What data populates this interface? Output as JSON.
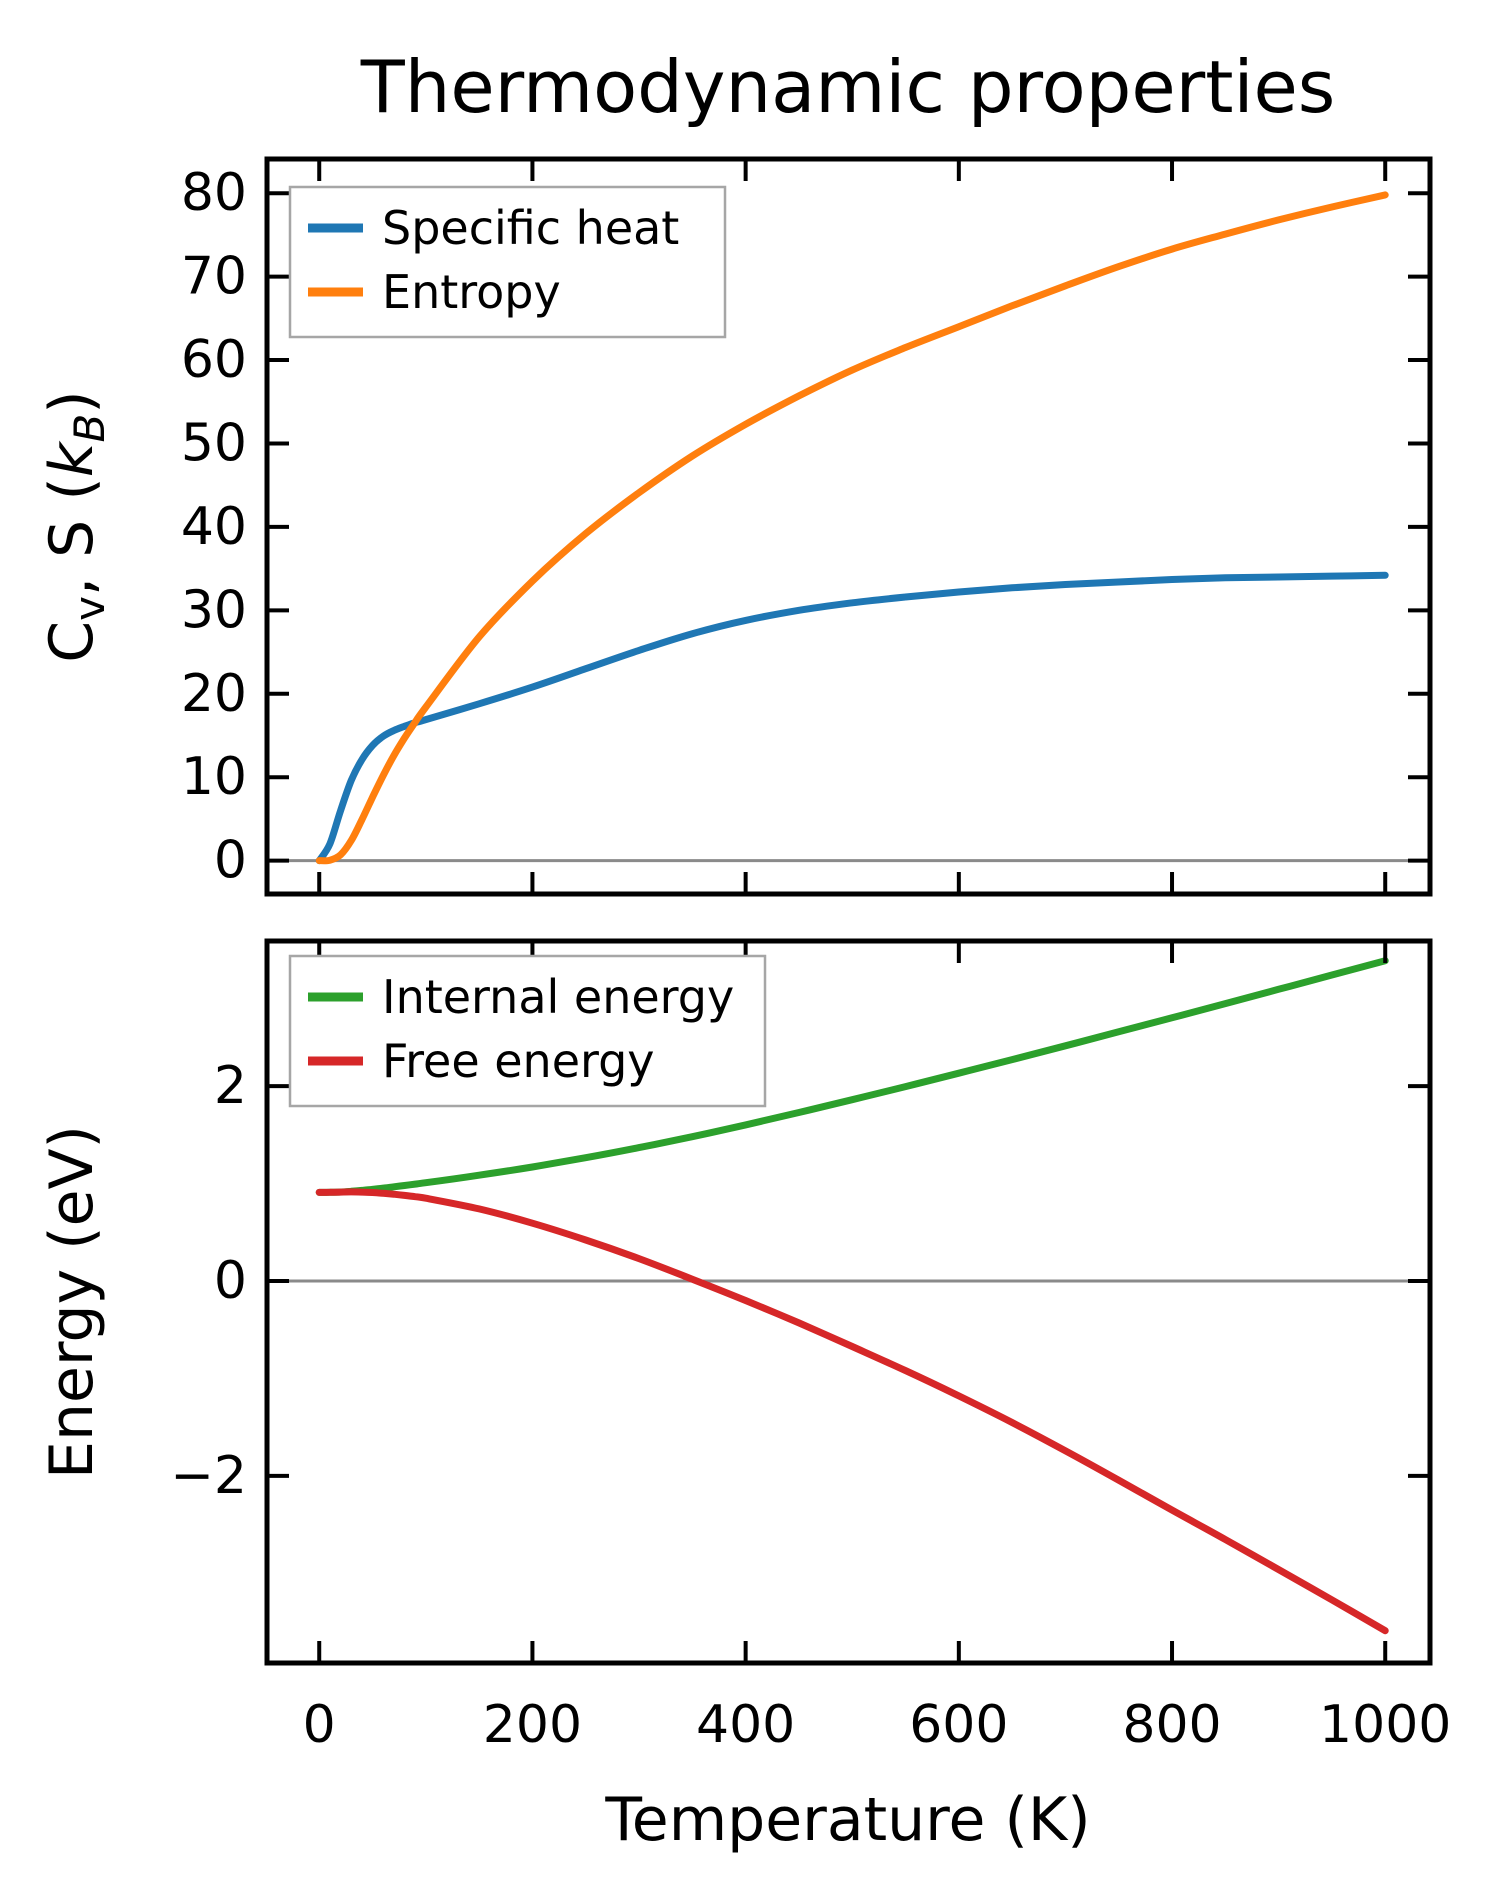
{
  "title": "Thermodynamic properties",
  "xlabel": "Temperature (K)",
  "colors": {
    "specific_heat": "#1f77b4",
    "entropy": "#ff7f0e",
    "internal_energy": "#2ca02c",
    "free_energy": "#d62728",
    "zero_line": "#8a8a8a",
    "spine": "#000000",
    "legend_border": "#a6a6a6",
    "background": "#ffffff"
  },
  "chart_data": [
    {
      "id": "top",
      "type": "line",
      "title": "",
      "ylabel_parts": [
        {
          "t": "C"
        },
        {
          "t": "v",
          "sub": true
        },
        {
          "t": ", S ("
        },
        {
          "t": "k",
          "italic": true
        },
        {
          "t": "B",
          "sub": true,
          "italic": true
        },
        {
          "t": ")"
        }
      ],
      "xlim": [
        -49,
        1042
      ],
      "ylim": [
        -4.0,
        84.1
      ],
      "xticks": [
        0,
        200,
        400,
        600,
        800,
        1000
      ],
      "yticks": [
        0,
        10,
        20,
        30,
        40,
        50,
        60,
        70,
        80
      ],
      "show_xtick_labels": false,
      "zero_line": 0,
      "grid": false,
      "legend_position": "upper left",
      "x": [
        0,
        10,
        20,
        30,
        40,
        50,
        60,
        70,
        80,
        90,
        100,
        150,
        200,
        250,
        300,
        350,
        400,
        450,
        500,
        550,
        600,
        650,
        700,
        750,
        800,
        850,
        900,
        950,
        1000
      ],
      "series": [
        {
          "name": "Specific heat",
          "slug": "specific-heat",
          "color_key": "specific_heat",
          "values": [
            0,
            2.0,
            6.0,
            9.6,
            12.1,
            13.8,
            14.9,
            15.6,
            16.1,
            16.55,
            16.9,
            18.8,
            20.8,
            23.0,
            25.2,
            27.2,
            28.8,
            30.0,
            30.9,
            31.6,
            32.2,
            32.7,
            33.1,
            33.4,
            33.7,
            33.9,
            34.0,
            34.1,
            34.2
          ]
        },
        {
          "name": "Entropy",
          "slug": "entropy",
          "color_key": "entropy",
          "values": [
            0,
            0.05,
            0.7,
            2.4,
            4.9,
            7.6,
            10.2,
            12.6,
            14.7,
            16.6,
            18.4,
            26.8,
            33.5,
            39.2,
            44.1,
            48.5,
            52.3,
            55.7,
            58.8,
            61.5,
            64.0,
            66.5,
            68.9,
            71.2,
            73.3,
            75.1,
            76.8,
            78.35,
            79.8
          ]
        }
      ]
    },
    {
      "id": "bottom",
      "type": "line",
      "title": "",
      "ylabel_parts": [
        {
          "t": "Energy (eV)"
        }
      ],
      "xlim": [
        -49,
        1042
      ],
      "ylim": [
        -3.92,
        3.49
      ],
      "xticks": [
        0,
        200,
        400,
        600,
        800,
        1000
      ],
      "yticks": [
        -2,
        0,
        2
      ],
      "show_xtick_labels": true,
      "zero_line": 0,
      "grid": false,
      "legend_position": "upper left",
      "x": [
        0,
        10,
        20,
        30,
        40,
        50,
        60,
        70,
        80,
        90,
        100,
        150,
        200,
        250,
        300,
        350,
        400,
        450,
        500,
        550,
        600,
        650,
        700,
        750,
        800,
        850,
        900,
        950,
        1000
      ],
      "series": [
        {
          "name": "Internal energy",
          "slug": "internal-energy",
          "color_key": "internal_energy",
          "values": [
            0.91,
            0.911,
            0.914,
            0.921,
            0.93,
            0.941,
            0.954,
            0.967,
            0.981,
            0.995,
            1.009,
            1.086,
            1.171,
            1.266,
            1.37,
            1.482,
            1.603,
            1.73,
            1.861,
            1.996,
            2.133,
            2.273,
            2.414,
            2.558,
            2.702,
            2.848,
            2.994,
            3.141,
            3.288
          ]
        },
        {
          "name": "Free energy",
          "slug": "free-energy",
          "color_key": "free_energy",
          "values": [
            0.91,
            0.911,
            0.913,
            0.915,
            0.913,
            0.909,
            0.901,
            0.891,
            0.879,
            0.866,
            0.85,
            0.74,
            0.594,
            0.421,
            0.23,
            0.019,
            -0.2,
            -0.43,
            -0.672,
            -0.919,
            -1.179,
            -1.452,
            -1.742,
            -2.044,
            -2.351,
            -2.652,
            -2.961,
            -3.272,
            -3.588
          ]
        }
      ]
    }
  ]
}
